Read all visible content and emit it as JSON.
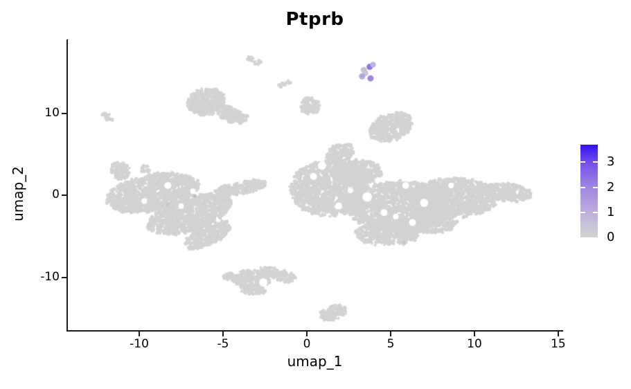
{
  "title": "Ptprb",
  "axes": {
    "x": {
      "label": "umap_1",
      "ticks": [
        -10,
        -5,
        0,
        5,
        10,
        15
      ]
    },
    "y": {
      "label": "umap_2",
      "ticks": [
        10,
        0,
        -10
      ]
    }
  },
  "legend": {
    "ticks": [
      0,
      1,
      2,
      3
    ],
    "min": 0,
    "max": 3.7,
    "gradient_stops": [
      {
        "t": 0.0,
        "color": "#d3d3d3"
      },
      {
        "t": 0.27,
        "color": "#bcafdd"
      },
      {
        "t": 0.54,
        "color": "#a086e2"
      },
      {
        "t": 0.8,
        "color": "#7450e9"
      },
      {
        "t": 1.0,
        "color": "#2e12f0"
      }
    ]
  },
  "chart_data": {
    "type": "scatter",
    "title": "Ptprb",
    "xlabel": "umap_1",
    "ylabel": "umap_2",
    "xlim": [
      -14.3,
      15.25
    ],
    "ylim": [
      -16.5,
      18.9
    ],
    "grid": false,
    "legend_position": "right",
    "base_color": "#d3d3d3",
    "background": "#ffffff",
    "clusters": [
      {
        "name": "left-main-upper",
        "cx": -9.2,
        "cy": 0.3,
        "rx": 2.8,
        "ry": 2.2,
        "rot": -10,
        "n": 1100
      },
      {
        "name": "left-main-lower",
        "cx": -7.0,
        "cy": -2.3,
        "rx": 2.6,
        "ry": 2.0,
        "rot": -18,
        "n": 900
      },
      {
        "name": "left-tail",
        "cx": -5.9,
        "cy": -4.8,
        "rx": 1.5,
        "ry": 1.2,
        "rot": -25,
        "n": 300
      },
      {
        "name": "left-arm",
        "cx": -4.0,
        "cy": 0.9,
        "rx": 1.6,
        "ry": 0.75,
        "rot": -10,
        "n": 220
      },
      {
        "name": "left-knob",
        "cx": -11.1,
        "cy": 3.0,
        "rx": 0.6,
        "ry": 1.05,
        "rot": 15,
        "n": 95
      },
      {
        "name": "left-top-dot-1",
        "cx": -9.6,
        "cy": 3.2,
        "rx": 0.28,
        "ry": 0.5,
        "rot": 0,
        "n": 18
      },
      {
        "name": "left-top-dot-2",
        "cx": -8.65,
        "cy": 2.55,
        "rx": 0.28,
        "ry": 0.45,
        "rot": 0,
        "n": 16
      },
      {
        "name": "left-top-dot-3",
        "cx": -7.6,
        "cy": 1.9,
        "rx": 0.3,
        "ry": 0.5,
        "rot": 0,
        "n": 18
      },
      {
        "name": "far-left-dash",
        "cx": -11.9,
        "cy": 9.55,
        "rx": 0.42,
        "ry": 0.33,
        "rot": 35,
        "n": 20
      },
      {
        "name": "topleft-head",
        "cx": -6.0,
        "cy": 11.4,
        "rx": 1.15,
        "ry": 1.6,
        "rot": -10,
        "n": 310
      },
      {
        "name": "topleft-head-tail",
        "cx": -4.6,
        "cy": 9.9,
        "rx": 0.95,
        "ry": 0.85,
        "rot": 25,
        "n": 140
      },
      {
        "name": "topleft-head-bump",
        "cx": -3.95,
        "cy": 9.5,
        "rx": 0.45,
        "ry": 0.5,
        "rot": 0,
        "n": 40
      },
      {
        "name": "top-dash-1",
        "cx": -3.15,
        "cy": 16.45,
        "rx": 0.55,
        "ry": 0.3,
        "rot": 33,
        "n": 22
      },
      {
        "name": "top-dash-2",
        "cx": -1.3,
        "cy": 13.55,
        "rx": 0.4,
        "ry": 0.3,
        "rot": -28,
        "n": 14
      },
      {
        "name": "top-small-blob",
        "cx": 0.2,
        "cy": 10.85,
        "rx": 0.62,
        "ry": 0.97,
        "rot": 10,
        "n": 100
      },
      {
        "name": "mid-top-cluster",
        "cx": 5.0,
        "cy": 8.3,
        "rx": 1.32,
        "ry": 1.6,
        "rot": -20,
        "n": 340
      },
      {
        "name": "right-top-arm",
        "cx": 1.95,
        "cy": 5.0,
        "rx": 0.9,
        "ry": 1.1,
        "rot": -20,
        "n": 160
      },
      {
        "name": "right-left-mass",
        "cx": 1.3,
        "cy": 0.8,
        "rx": 2.3,
        "ry": 3.3,
        "rot": 0,
        "n": 1200
      },
      {
        "name": "right-top-ridge",
        "cx": 3.0,
        "cy": 2.8,
        "rx": 1.5,
        "ry": 1.5,
        "rot": 0,
        "n": 350
      },
      {
        "name": "right-central",
        "cx": 5.5,
        "cy": -1.3,
        "rx": 3.3,
        "ry": 3.0,
        "rot": 0,
        "n": 1550
      },
      {
        "name": "right-bottom-lobe",
        "cx": 4.8,
        "cy": -4.6,
        "rx": 1.9,
        "ry": 1.5,
        "rot": 0,
        "n": 430
      },
      {
        "name": "right-bottom-lobe-2",
        "cx": 7.5,
        "cy": -3.3,
        "rx": 1.5,
        "ry": 1.3,
        "rot": 0,
        "n": 280
      },
      {
        "name": "right-mid",
        "cx": 8.8,
        "cy": -0.3,
        "rx": 2.6,
        "ry": 2.4,
        "rot": 0,
        "n": 950
      },
      {
        "name": "right-tip",
        "cx": 11.9,
        "cy": 0.35,
        "rx": 1.55,
        "ry": 1.05,
        "rot": 5,
        "n": 270
      },
      {
        "name": "bottom-c-main",
        "cx": -3.3,
        "cy": -10.2,
        "rx": 1.15,
        "ry": 1.05,
        "rot": 0,
        "n": 200
      },
      {
        "name": "bottom-c-upper",
        "cx": -2.1,
        "cy": -9.4,
        "rx": 0.8,
        "ry": 0.55,
        "rot": 20,
        "n": 75
      },
      {
        "name": "bottom-c-right",
        "cx": -1.2,
        "cy": -9.9,
        "rx": 0.5,
        "ry": 0.7,
        "rot": 0,
        "n": 60
      },
      {
        "name": "bottom-c-lower",
        "cx": -3.2,
        "cy": -11.5,
        "rx": 0.75,
        "ry": 0.55,
        "rot": 0,
        "n": 70
      },
      {
        "name": "bottom-c-hook",
        "cx": -4.5,
        "cy": -9.9,
        "rx": 0.5,
        "ry": 0.4,
        "rot": 0,
        "n": 35
      },
      {
        "name": "bottom-small",
        "cx": 1.55,
        "cy": -14.3,
        "rx": 0.8,
        "ry": 0.85,
        "rot": -15,
        "n": 130
      }
    ],
    "holes": [
      {
        "x": 3.6,
        "y": -0.2,
        "r": 7
      },
      {
        "x": 5.9,
        "y": 1.2,
        "r": 5
      },
      {
        "x": 7.0,
        "y": -0.9,
        "r": 6
      },
      {
        "x": 4.6,
        "y": -2.1,
        "r": 5
      },
      {
        "x": 8.6,
        "y": 1.2,
        "r": 4
      },
      {
        "x": 6.3,
        "y": -3.3,
        "r": 5
      },
      {
        "x": 1.9,
        "y": -1.3,
        "r": 5
      },
      {
        "x": 0.4,
        "y": 2.3,
        "r": 5
      },
      {
        "x": 0.9,
        "y": 3.6,
        "r": 6
      },
      {
        "x": 2.6,
        "y": 0.6,
        "r": 4
      },
      {
        "x": 5.3,
        "y": -2.6,
        "r": 4
      },
      {
        "x": -8.3,
        "y": 1.2,
        "r": 5
      },
      {
        "x": -6.8,
        "y": 0.5,
        "r": 4
      },
      {
        "x": -9.7,
        "y": -0.7,
        "r": 4
      },
      {
        "x": -7.5,
        "y": -1.3,
        "r": 4
      },
      {
        "x": -2.6,
        "y": -10.6,
        "r": 6
      }
    ],
    "expressing_cells": [
      {
        "x": 3.75,
        "y": 15.65,
        "value": 2.3,
        "r": 4.5
      },
      {
        "x": 3.4,
        "y": 15.25,
        "value": 0.5,
        "r": 4.5
      },
      {
        "x": 3.95,
        "y": 15.9,
        "value": 0.9,
        "r": 4.0
      },
      {
        "x": 3.5,
        "y": 14.85,
        "value": 0.4,
        "r": 4.0
      },
      {
        "x": 3.3,
        "y": 14.5,
        "value": 1.2,
        "r": 4.5
      },
      {
        "x": 3.8,
        "y": 14.25,
        "value": 2.0,
        "r": 4.5
      },
      {
        "x": -6.7,
        "y": -0.1,
        "value": 0.8,
        "r": 2.2
      },
      {
        "x": -8.3,
        "y": -1.1,
        "value": 0.5,
        "r": 2.2
      },
      {
        "x": 5.8,
        "y": -5.75,
        "value": 0.6,
        "r": 2.2
      }
    ]
  }
}
